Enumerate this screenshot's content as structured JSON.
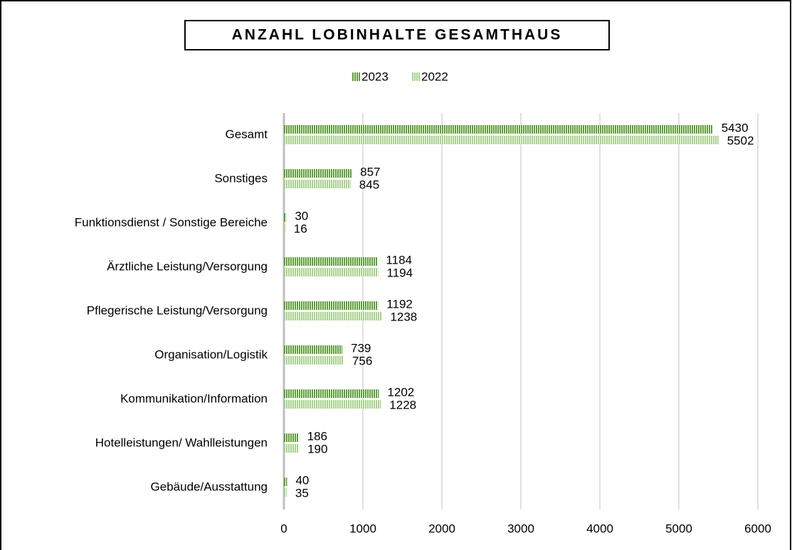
{
  "chart_data": {
    "type": "hbar",
    "title": "ANZAHL LOBINHALTE GESAMTHAUS",
    "categories": [
      "Gesamt",
      "Sonstiges",
      "Funktionsdienst / Sonstige Bereiche",
      "Ärztliche Leistung/Versorgung",
      "Pflegerische Leistung/Versorgung",
      "Organisation/Logistik",
      "Kommunikation/Information",
      "Hotelleistungen/ Wahlleistungen",
      "Gebäude/Ausstattung"
    ],
    "series": [
      {
        "name": "2023",
        "color": "#5e9e3a",
        "values": [
          5430,
          857,
          30,
          1184,
          1192,
          739,
          1202,
          186,
          40
        ]
      },
      {
        "name": "2022",
        "color": "#a8d08d",
        "values": [
          5502,
          845,
          16,
          1194,
          1238,
          756,
          1228,
          190,
          35
        ]
      }
    ],
    "xlim": [
      0,
      6000
    ],
    "xticks": [
      0,
      1000,
      2000,
      3000,
      4000,
      5000,
      6000
    ],
    "grid": true,
    "legend": "top"
  }
}
